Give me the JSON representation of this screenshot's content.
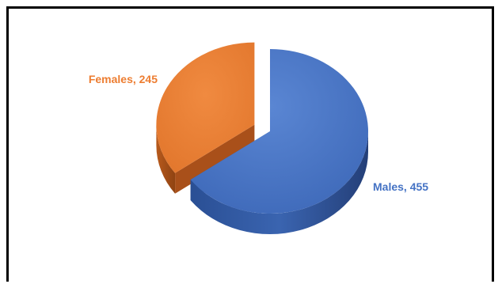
{
  "chart_data": {
    "type": "pie",
    "style": "3d-exploded",
    "title": "",
    "slices": [
      {
        "label": "Males",
        "value": 455,
        "color": "#4472C4",
        "label_text": "Males, 455"
      },
      {
        "label": "Females",
        "value": 245,
        "color": "#ED7D31",
        "label_text": "Females, 245"
      }
    ],
    "legend": "none"
  }
}
